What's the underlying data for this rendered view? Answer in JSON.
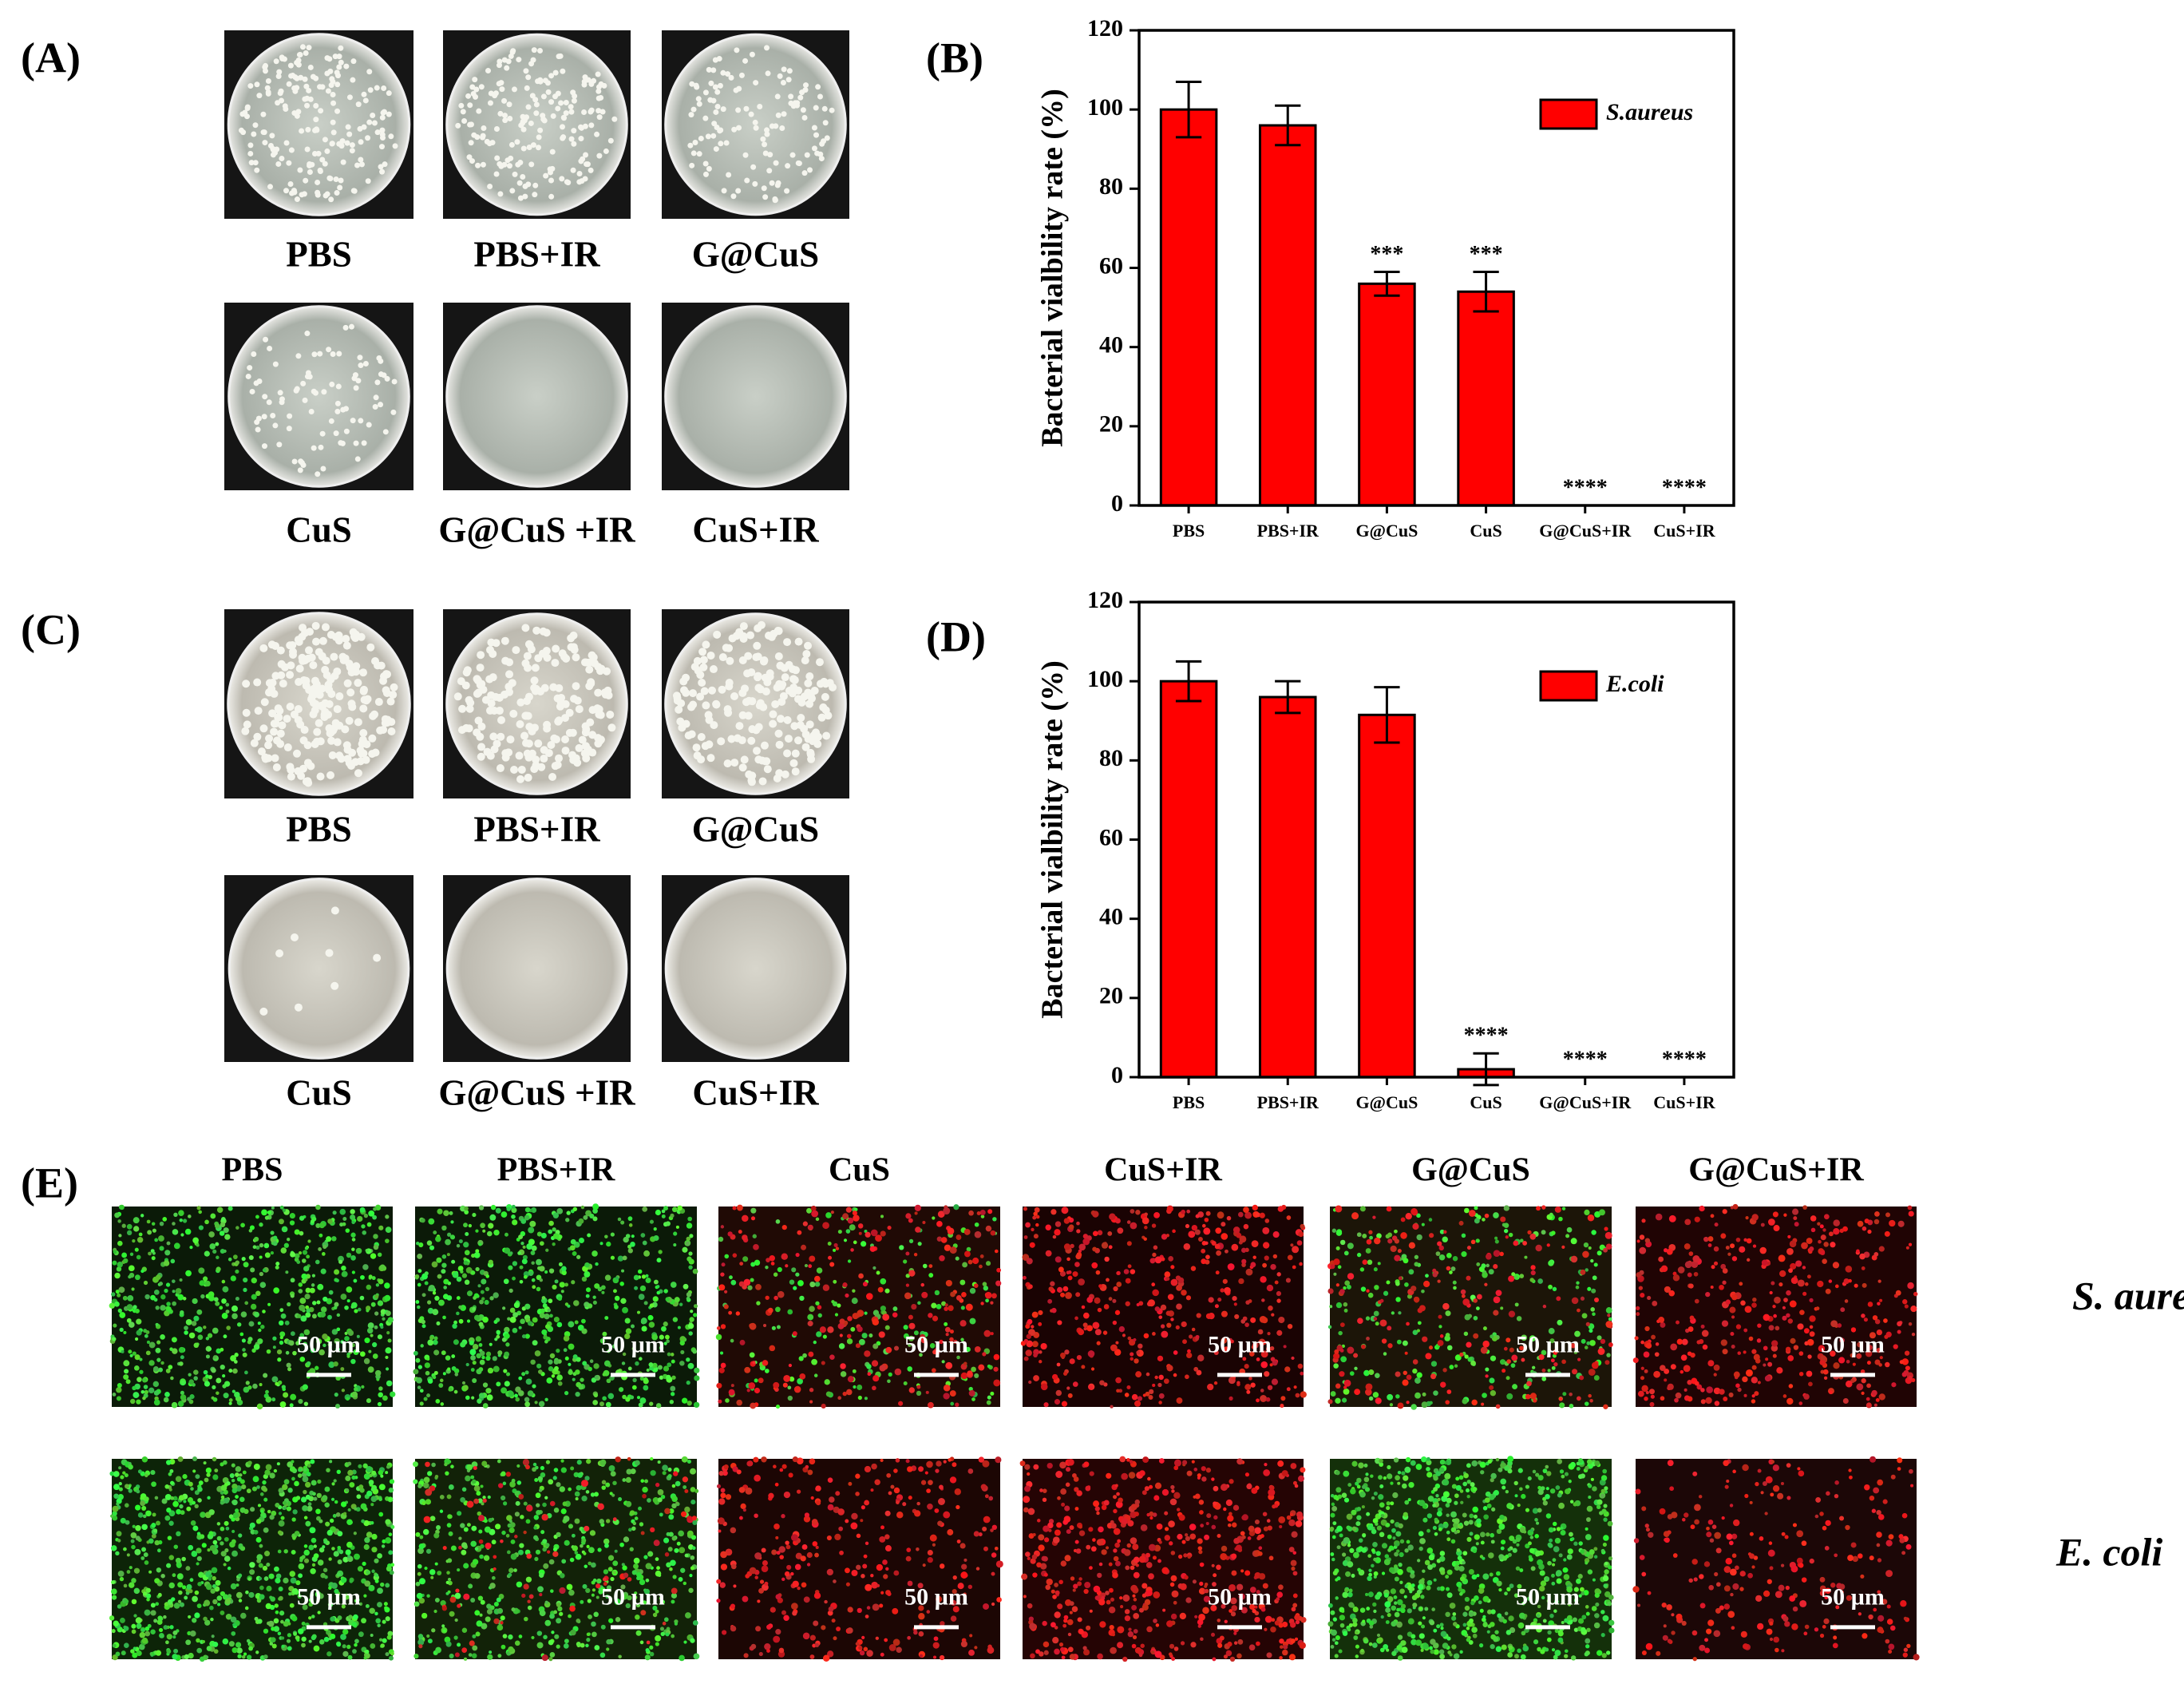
{
  "panel_labels": [
    "(A)",
    "(B)",
    "(C)",
    "(D)",
    "(E)"
  ],
  "plates_A": [
    "PBS",
    "PBS+IR",
    "G@CuS",
    "CuS",
    "G@CuS +IR",
    "CuS+IR"
  ],
  "plates_C": [
    "PBS",
    "PBS+IR",
    "G@CuS",
    "CuS",
    "G@CuS +IR",
    "CuS+IR"
  ],
  "chart_data": [
    {
      "type": "bar",
      "ylabel": "Bacterial vialbility rate (%)",
      "categories": [
        "PBS",
        "PBS+IR",
        "G@CuS",
        "CuS",
        "G@CuS+IR",
        "CuS+IR"
      ],
      "series": [
        {
          "name": "S.aureus",
          "color": "#ff0000",
          "values": [
            100,
            96,
            56,
            54,
            0,
            0
          ],
          "errors": [
            7,
            5,
            3,
            5,
            0,
            0
          ]
        }
      ],
      "annotations": [
        null,
        null,
        "***",
        "***",
        "****",
        "****"
      ],
      "ylim": [
        0,
        120
      ],
      "yticks": [
        0,
        20,
        40,
        60,
        80,
        100,
        120
      ],
      "legend": "upper right"
    },
    {
      "type": "bar",
      "ylabel": "Bacterial vialbility rate (%)",
      "categories": [
        "PBS",
        "PBS+IR",
        "G@CuS",
        "CuS",
        "G@CuS+IR",
        "CuS+IR"
      ],
      "series": [
        {
          "name": "E.coli",
          "color": "#ff0000",
          "values": [
            100,
            96,
            91.5,
            2,
            0,
            0
          ],
          "errors": [
            5,
            4,
            7,
            4,
            0,
            0
          ]
        }
      ],
      "annotations": [
        null,
        null,
        null,
        "****",
        "****",
        "****"
      ],
      "ylim": [
        0,
        120
      ],
      "yticks": [
        0,
        20,
        40,
        60,
        80,
        100,
        120
      ],
      "legend": "upper right"
    }
  ],
  "microscopy": {
    "columns": [
      "PBS",
      "PBS+IR",
      "CuS",
      "CuS+IR",
      "G@CuS",
      "G@CuS+IR"
    ],
    "rows": [
      "S. aureus",
      "E. coli"
    ],
    "scale_bar": "50 µm"
  }
}
